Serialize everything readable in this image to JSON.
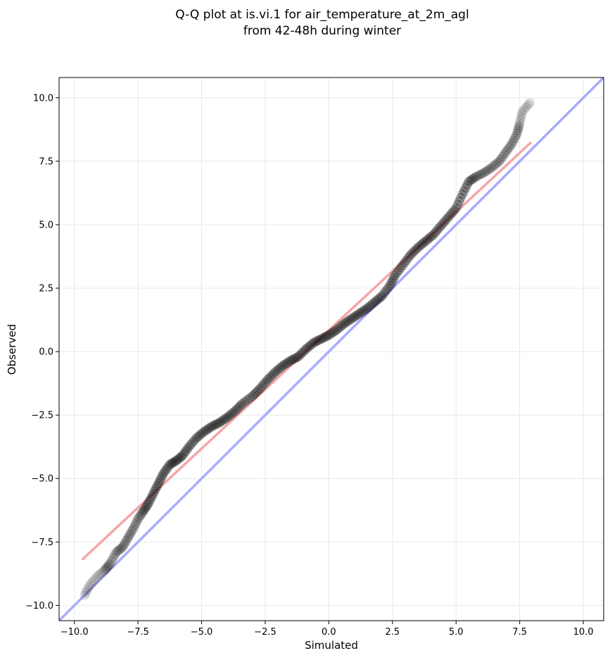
{
  "chart_data": {
    "type": "scatter",
    "title_lines": [
      "Q-Q plot at is.vi.1 for air_temperature_at_2m_agl",
      "from 42-48h during winter"
    ],
    "xlabel": "Simulated",
    "ylabel": "Observed",
    "xlim": [
      -10.6,
      10.8
    ],
    "ylim": [
      -10.6,
      10.8
    ],
    "x_ticks": [
      -10,
      -7.5,
      -5,
      -2.5,
      0,
      2.5,
      5,
      7.5,
      10
    ],
    "y_ticks": [
      -10,
      -7.5,
      -5,
      -2.5,
      0,
      2.5,
      5,
      7.5,
      10
    ],
    "x_tick_labels": [
      "−10.0",
      "−7.5",
      "−5.0",
      "−2.5",
      "0.0",
      "2.5",
      "5.0",
      "7.5",
      "10.0"
    ],
    "y_tick_labels": [
      "−10.0",
      "−7.5",
      "−5.0",
      "−2.5",
      "0.0",
      "2.5",
      "5.0",
      "7.5",
      "10.0"
    ],
    "grid": true,
    "reference_line": {
      "color": "#aaaaff",
      "from": [
        -10.6,
        -10.6
      ],
      "to": [
        10.8,
        10.8
      ]
    },
    "fit_line": {
      "color": "#f4a6a8",
      "from": [
        -9.7,
        -8.2
      ],
      "to": [
        7.95,
        8.25
      ]
    },
    "quantile_points": [
      [
        -9.6,
        -9.6
      ],
      [
        -9.4,
        -9.2
      ],
      [
        -9.1,
        -8.85
      ],
      [
        -8.8,
        -8.6
      ],
      [
        -8.6,
        -8.35
      ],
      [
        -8.35,
        -7.9
      ],
      [
        -8.1,
        -7.7
      ],
      [
        -7.9,
        -7.35
      ],
      [
        -7.7,
        -7.0
      ],
      [
        -7.5,
        -6.6
      ],
      [
        -7.3,
        -6.3
      ],
      [
        -7.1,
        -6.0
      ],
      [
        -6.9,
        -5.6
      ],
      [
        -6.7,
        -5.2
      ],
      [
        -6.5,
        -4.8
      ],
      [
        -6.25,
        -4.45
      ],
      [
        -6.0,
        -4.3
      ],
      [
        -5.75,
        -4.1
      ],
      [
        -5.5,
        -3.75
      ],
      [
        -5.2,
        -3.4
      ],
      [
        -4.9,
        -3.15
      ],
      [
        -4.6,
        -2.95
      ],
      [
        -4.3,
        -2.8
      ],
      [
        -4.0,
        -2.6
      ],
      [
        -3.7,
        -2.35
      ],
      [
        -3.4,
        -2.05
      ],
      [
        -3.0,
        -1.75
      ],
      [
        -2.7,
        -1.45
      ],
      [
        -2.4,
        -1.1
      ],
      [
        -2.1,
        -0.8
      ],
      [
        -1.8,
        -0.55
      ],
      [
        -1.5,
        -0.35
      ],
      [
        -1.2,
        -0.2
      ],
      [
        -0.9,
        0.1
      ],
      [
        -0.6,
        0.35
      ],
      [
        -0.3,
        0.5
      ],
      [
        0.0,
        0.65
      ],
      [
        0.3,
        0.85
      ],
      [
        0.6,
        1.1
      ],
      [
        0.9,
        1.3
      ],
      [
        1.2,
        1.5
      ],
      [
        1.5,
        1.7
      ],
      [
        1.8,
        1.95
      ],
      [
        2.1,
        2.2
      ],
      [
        2.4,
        2.6
      ],
      [
        2.6,
        3.0
      ],
      [
        2.9,
        3.4
      ],
      [
        3.2,
        3.8
      ],
      [
        3.5,
        4.1
      ],
      [
        3.8,
        4.35
      ],
      [
        4.1,
        4.6
      ],
      [
        4.4,
        4.95
      ],
      [
        4.7,
        5.3
      ],
      [
        5.0,
        5.65
      ],
      [
        5.25,
        6.2
      ],
      [
        5.5,
        6.7
      ],
      [
        5.8,
        6.9
      ],
      [
        6.1,
        7.05
      ],
      [
        6.4,
        7.25
      ],
      [
        6.7,
        7.5
      ],
      [
        6.95,
        7.85
      ],
      [
        7.2,
        8.2
      ],
      [
        7.4,
        8.6
      ],
      [
        7.5,
        9.0
      ],
      [
        7.6,
        9.45
      ],
      [
        7.9,
        9.8
      ]
    ]
  }
}
